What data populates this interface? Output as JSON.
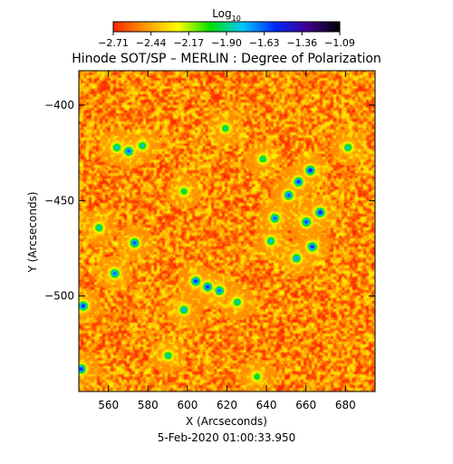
{
  "chart_data": {
    "type": "heatmap",
    "title": "Hinode SOT/SP – MERLIN : Degree of Polarization",
    "xlabel": "X (Arcseconds)",
    "ylabel": "Y (Arcseconds)",
    "footer": "5-Feb-2020 01:00:33.950",
    "colorbar": {
      "label_prefix": "Log",
      "label_subscript": "10",
      "tick_labels": [
        "−2.71",
        "−2.44",
        "−2.17",
        "−1.90",
        "−1.63",
        "−1.36",
        "−1.09"
      ],
      "range": [
        -2.71,
        -1.09
      ],
      "colors": [
        "#ff2400",
        "#ff9a00",
        "#ffff00",
        "#00e000",
        "#00c8ff",
        "#0028ff",
        "#400090",
        "#000000"
      ]
    },
    "xlim": [
      545,
      695
    ],
    "ylim": [
      -550,
      -382
    ],
    "x_ticks": [
      560,
      580,
      600,
      620,
      640,
      660,
      680
    ],
    "x_tick_labels": [
      "560",
      "580",
      "600",
      "620",
      "640",
      "660",
      "680"
    ],
    "y_ticks": [
      -400,
      -450,
      -500
    ],
    "y_tick_labels": [
      "−400",
      "−450",
      "−500"
    ],
    "field": {
      "background_level": -2.5,
      "features": [
        {
          "x": 570,
          "y": -424,
          "value": -1.55
        },
        {
          "x": 564,
          "y": -422,
          "value": -1.75
        },
        {
          "x": 577,
          "y": -421,
          "value": -1.8
        },
        {
          "x": 656,
          "y": -440,
          "value": -1.5
        },
        {
          "x": 662,
          "y": -434,
          "value": -1.45
        },
        {
          "x": 651,
          "y": -447,
          "value": -1.55
        },
        {
          "x": 667,
          "y": -456,
          "value": -1.45
        },
        {
          "x": 660,
          "y": -461,
          "value": -1.55
        },
        {
          "x": 644,
          "y": -459,
          "value": -1.6
        },
        {
          "x": 663,
          "y": -474,
          "value": -1.5
        },
        {
          "x": 655,
          "y": -480,
          "value": -1.65
        },
        {
          "x": 642,
          "y": -471,
          "value": -1.75
        },
        {
          "x": 604,
          "y": -492,
          "value": -1.5
        },
        {
          "x": 610,
          "y": -495,
          "value": -1.5
        },
        {
          "x": 616,
          "y": -497,
          "value": -1.6
        },
        {
          "x": 598,
          "y": -507,
          "value": -1.7
        },
        {
          "x": 573,
          "y": -472,
          "value": -1.55
        },
        {
          "x": 555,
          "y": -464,
          "value": -1.8
        },
        {
          "x": 547,
          "y": -505,
          "value": -1.5
        },
        {
          "x": 546,
          "y": -538,
          "value": -1.5
        },
        {
          "x": 625,
          "y": -503,
          "value": -1.8
        },
        {
          "x": 619,
          "y": -412,
          "value": -1.85
        },
        {
          "x": 638,
          "y": -428,
          "value": -1.85
        },
        {
          "x": 598,
          "y": -445,
          "value": -1.9
        },
        {
          "x": 681,
          "y": -422,
          "value": -1.8
        },
        {
          "x": 590,
          "y": -531,
          "value": -1.8
        },
        {
          "x": 635,
          "y": -542,
          "value": -1.9
        },
        {
          "x": 563,
          "y": -488,
          "value": -1.6
        }
      ]
    }
  }
}
